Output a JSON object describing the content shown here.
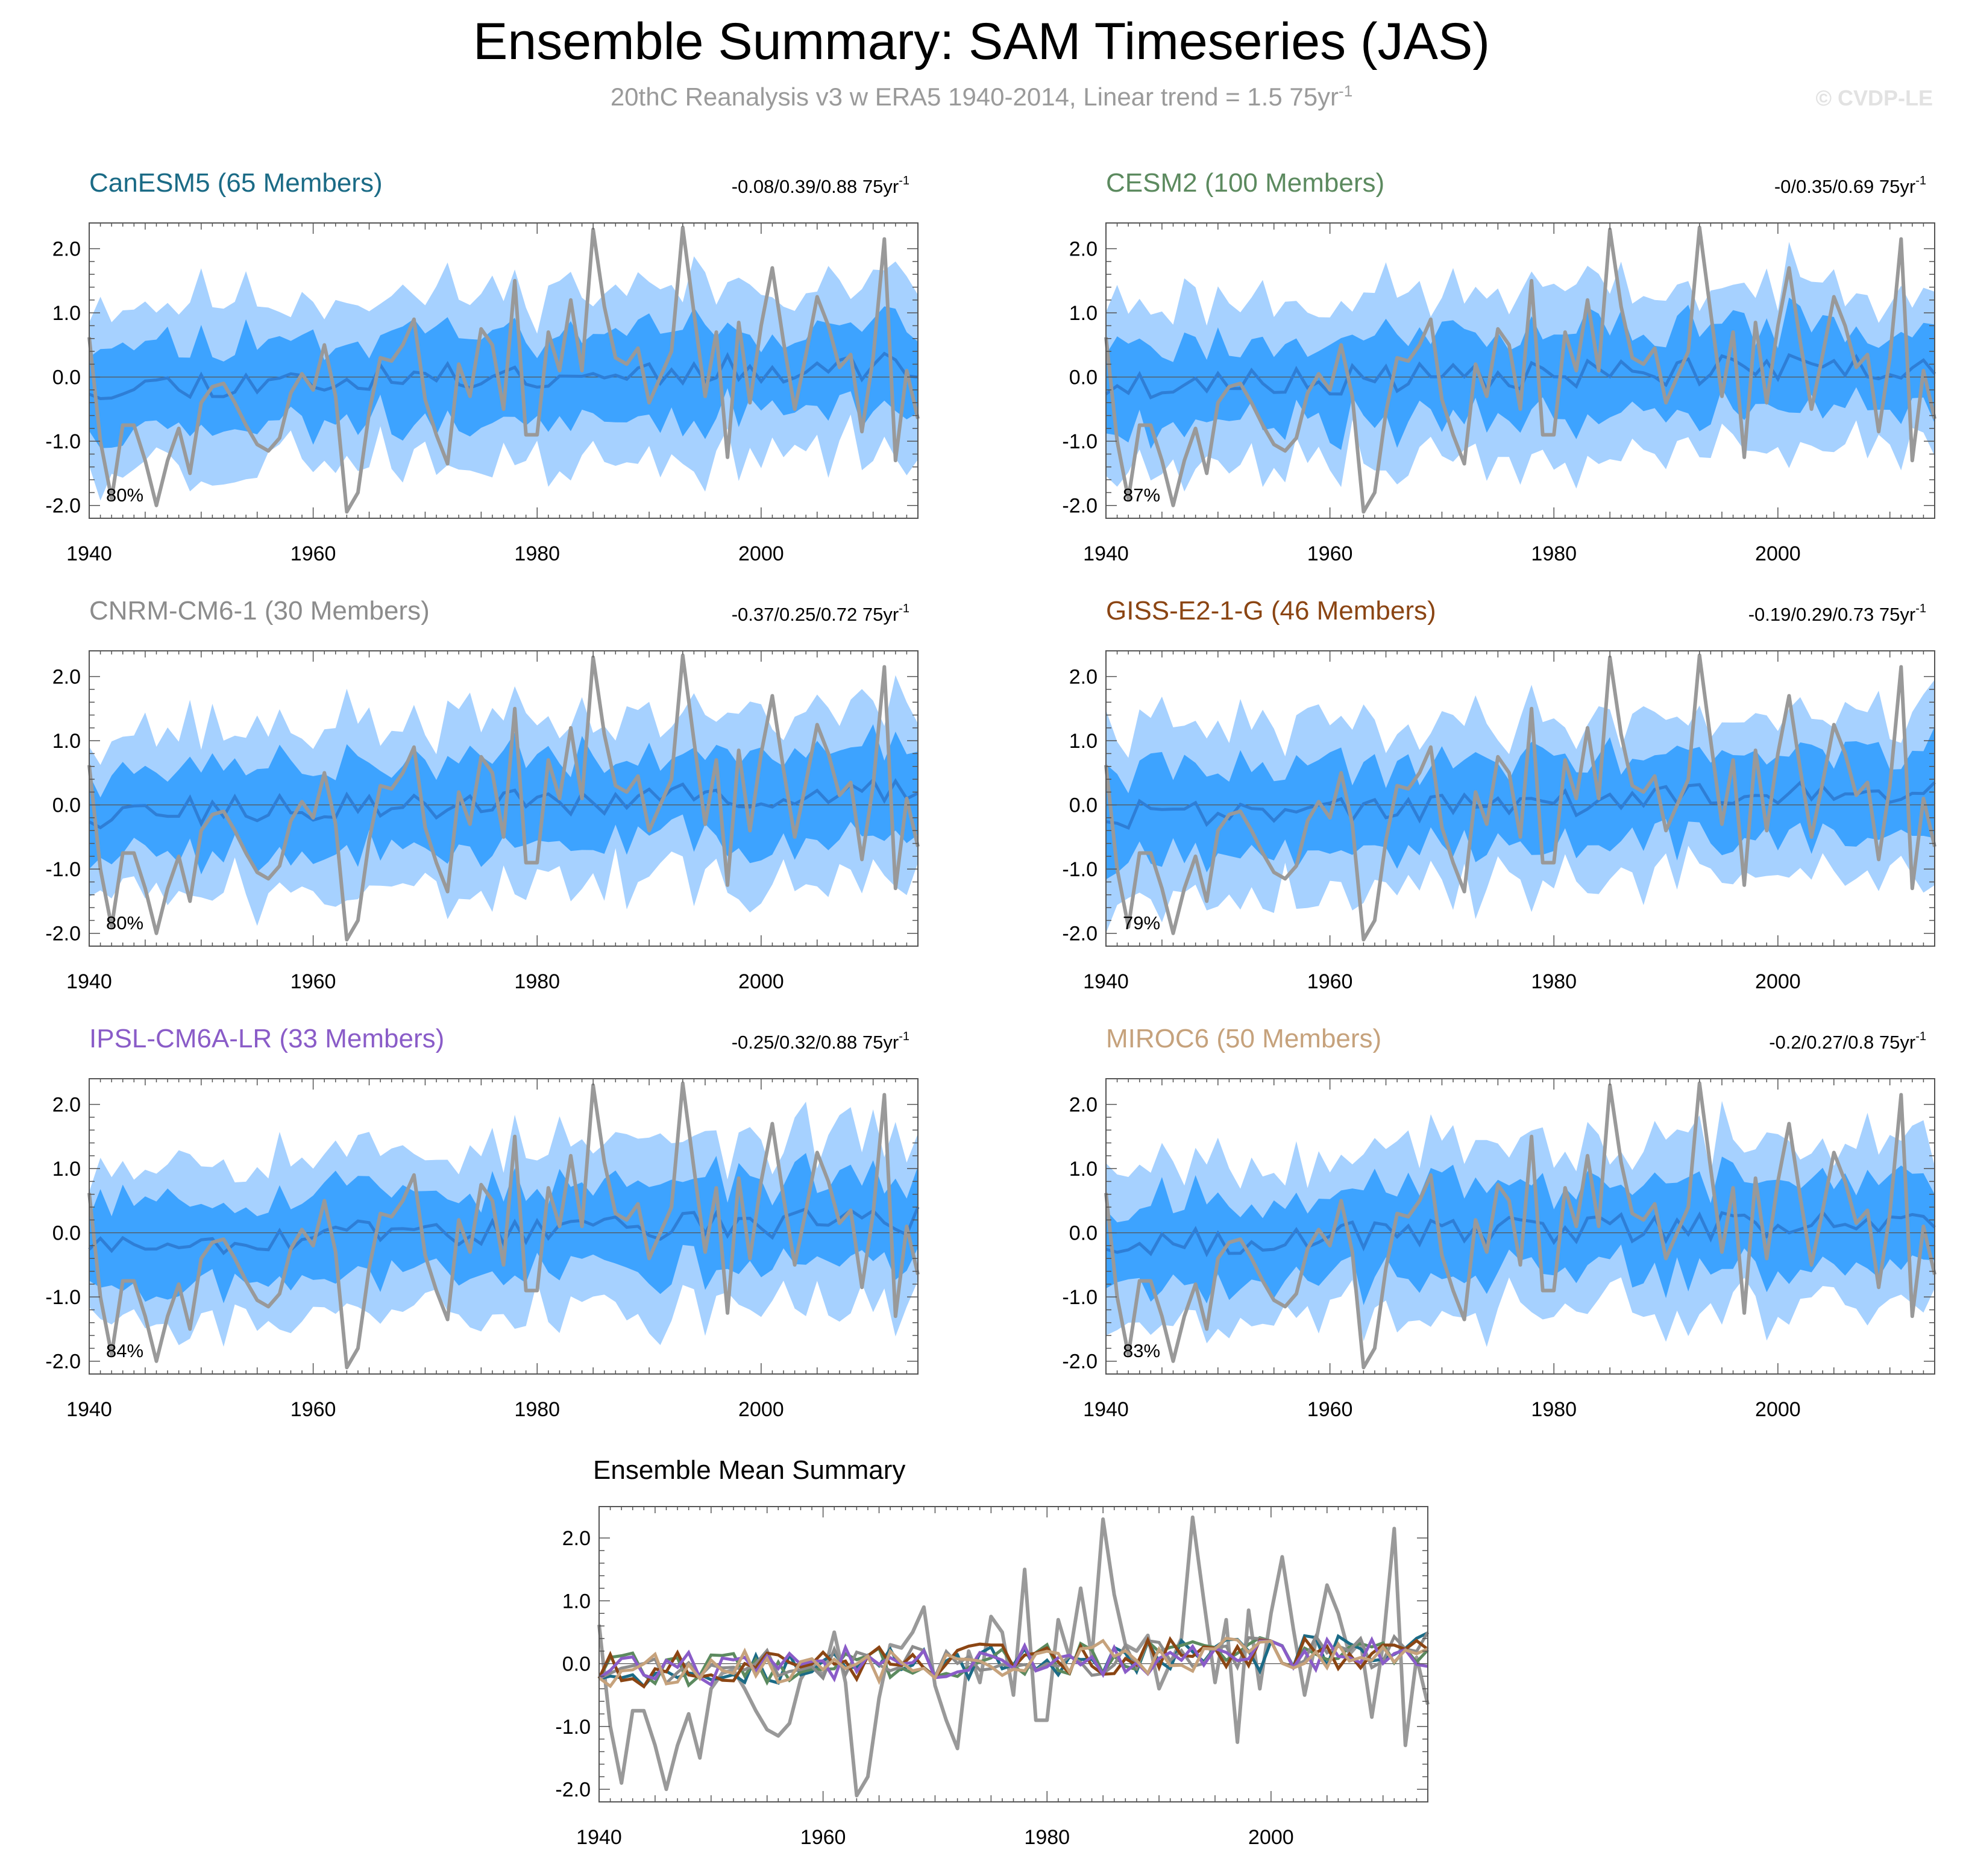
{
  "figure": {
    "title": "Ensemble Summary: SAM Timeseries (JAS)",
    "subtitle": "20thC Reanalysis v3 w ERA5 1940-2014, Linear trend = 1.5 75yr",
    "subtitle_superscript": "-1",
    "watermark": "© CVDP-LE"
  },
  "chart_data": [
    {
      "type": "area",
      "title": "CanESM5 (65 Members)",
      "title_color": "#1b6b86",
      "trend_label": "-0.08/0.39/0.88 75yr",
      "trend_superscript": "-1",
      "percent_label": "80%",
      "xlim": [
        1940,
        2014
      ],
      "ylim": [
        -2.2,
        2.4
      ],
      "xticks": [
        1940,
        1960,
        1980,
        2000
      ],
      "yticks": [
        "2.0",
        "1.0",
        "0.0",
        "-1.0",
        "-2.0"
      ],
      "seed": 11
    },
    {
      "type": "area",
      "title": "CESM2 (100 Members)",
      "title_color": "#5c8a5f",
      "trend_label": "-0/0.35/0.69 75yr",
      "trend_superscript": "-1",
      "percent_label": "87%",
      "xlim": [
        1940,
        2014
      ],
      "ylim": [
        -2.2,
        2.4
      ],
      "xticks": [
        1940,
        1960,
        1980,
        2000
      ],
      "yticks": [
        "2.0",
        "1.0",
        "0.0",
        "-1.0",
        "-2.0"
      ],
      "seed": 23
    },
    {
      "type": "area",
      "title": "CNRM-CM6-1 (30 Members)",
      "title_color": "#8c8c8c",
      "trend_label": "-0.37/0.25/0.72 75yr",
      "trend_superscript": "-1",
      "percent_label": "80%",
      "xlim": [
        1940,
        2014
      ],
      "ylim": [
        -2.2,
        2.4
      ],
      "xticks": [
        1940,
        1960,
        1980,
        2000
      ],
      "yticks": [
        "2.0",
        "1.0",
        "0.0",
        "-1.0",
        "-2.0"
      ],
      "seed": 37
    },
    {
      "type": "area",
      "title": "GISS-E2-1-G (46 Members)",
      "title_color": "#8b4513",
      "trend_label": "-0.19/0.29/0.73 75yr",
      "trend_superscript": "-1",
      "percent_label": "79%",
      "xlim": [
        1940,
        2014
      ],
      "ylim": [
        -2.2,
        2.4
      ],
      "xticks": [
        1940,
        1960,
        1980,
        2000
      ],
      "yticks": [
        "2.0",
        "1.0",
        "0.0",
        "-1.0",
        "-2.0"
      ],
      "seed": 41
    },
    {
      "type": "area",
      "title": "IPSL-CM6A-LR (33 Members)",
      "title_color": "#8a5cc8",
      "trend_label": "-0.25/0.32/0.88 75yr",
      "trend_superscript": "-1",
      "percent_label": "84%",
      "xlim": [
        1940,
        2014
      ],
      "ylim": [
        -2.2,
        2.4
      ],
      "xticks": [
        1940,
        1960,
        1980,
        2000
      ],
      "yticks": [
        "2.0",
        "1.0",
        "0.0",
        "-1.0",
        "-2.0"
      ],
      "seed": 53
    },
    {
      "type": "area",
      "title": "MIROC6 (50 Members)",
      "title_color": "#c6a27c",
      "trend_label": "-0.2/0.27/0.8 75yr",
      "trend_superscript": "-1",
      "percent_label": "83%",
      "xlim": [
        1940,
        2014
      ],
      "ylim": [
        -2.2,
        2.4
      ],
      "xticks": [
        1940,
        1960,
        1980,
        2000
      ],
      "yticks": [
        "2.0",
        "1.0",
        "0.0",
        "-1.0",
        "-2.0"
      ],
      "seed": 67
    },
    {
      "type": "line",
      "title": "Ensemble Mean Summary",
      "xlim": [
        1940,
        2014
      ],
      "ylim": [
        -2.2,
        2.5
      ],
      "xticks": [
        1940,
        1960,
        1980,
        2000
      ],
      "yticks": [
        "2.0",
        "1.0",
        "0.0",
        "-1.0",
        "-2.0"
      ],
      "series_colors": [
        "#1b6b86",
        "#5c8a5f",
        "#8c8c8c",
        "#8b4513",
        "#8a5cc8",
        "#c6a27c"
      ]
    }
  ],
  "observed": {
    "color": "#999999",
    "x_start": 1940,
    "values": [
      0.62,
      -1.0,
      -1.9,
      -0.75,
      -0.75,
      -1.3,
      -2.0,
      -1.3,
      -0.8,
      -1.5,
      -0.4,
      -0.15,
      -0.1,
      -0.4,
      -0.75,
      -1.05,
      -1.15,
      -0.95,
      -0.25,
      0.05,
      -0.2,
      0.5,
      -0.3,
      -2.1,
      -1.8,
      -0.55,
      0.3,
      0.25,
      0.5,
      0.9,
      -0.35,
      -0.9,
      -1.35,
      0.2,
      -0.3,
      0.75,
      0.5,
      -0.5,
      1.5,
      -0.9,
      -0.9,
      0.7,
      0.1,
      1.2,
      0.1,
      2.3,
      1.1,
      0.3,
      0.2,
      0.45,
      -0.4,
      0.0,
      0.4,
      2.33,
      1.0,
      -0.3,
      0.7,
      -1.25,
      0.85,
      -0.4,
      0.8,
      1.7,
      0.55,
      -0.5,
      0.35,
      1.25,
      0.8,
      0.15,
      0.35,
      -0.85,
      0.3,
      2.15,
      -1.3,
      0.1,
      -0.65
    ]
  },
  "colors": {
    "band_outer": "#a6d1ff",
    "band_inner": "#3da3ff",
    "ensemble_mean": "#2e7ed6",
    "zero_line": "#555555"
  }
}
